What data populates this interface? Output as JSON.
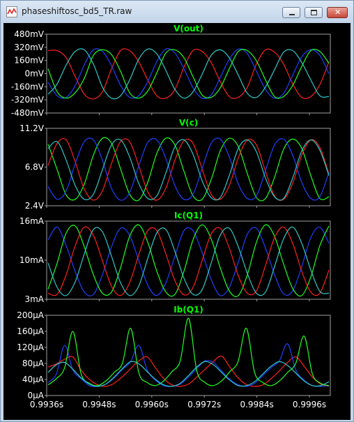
{
  "window": {
    "title": "phaseshiftosc_bd5_TR.raw"
  },
  "colors": {
    "background": "#000000",
    "frame": "#a0a0a0",
    "label": "#ffffff",
    "title": "#00ff00",
    "red": "#ff2020",
    "green": "#20ff20",
    "blue": "#2040ff",
    "cyan": "#30c8c8"
  },
  "chart_data": [
    {
      "type": "line",
      "title": "V(out)",
      "y_ticks": [
        "480mV",
        "320mV",
        "160mV",
        "0mV",
        "-160mV",
        "-320mV",
        "-480mV"
      ],
      "ylim": [
        -480,
        480
      ],
      "x_ticks": [],
      "series": [
        {
          "color": "red",
          "values": [
            290,
            290,
            200,
            -40,
            -260,
            -320,
            -230,
            60,
            290,
            290,
            150,
            -80,
            -280,
            -310,
            -200,
            80,
            290,
            280,
            140,
            -100,
            -290,
            -300,
            -170,
            120,
            300,
            270,
            120,
            -130,
            -300,
            -290,
            -140,
            150
          ]
        },
        {
          "color": "blue",
          "values": [
            -110,
            -280,
            -300,
            -150,
            110,
            300,
            280,
            100,
            -150,
            -300,
            -280,
            -100,
            150,
            310,
            260,
            60,
            -180,
            -310,
            -270,
            -50,
            180,
            310,
            250,
            30,
            -200,
            -310,
            -250,
            -20,
            210,
            300,
            230,
            0
          ]
        },
        {
          "color": "green",
          "values": [
            60,
            -230,
            -310,
            -240,
            -60,
            230,
            300,
            240,
            30,
            -240,
            -310,
            -220,
            10,
            260,
            300,
            200,
            -40,
            -270,
            -300,
            -180,
            60,
            280,
            290,
            160,
            -80,
            -290,
            -290,
            -150,
            90,
            290,
            280,
            130
          ]
        },
        {
          "color": "cyan",
          "values": [
            -260,
            -130,
            110,
            280,
            300,
            120,
            -170,
            -310,
            -280,
            -80,
            180,
            310,
            250,
            40,
            -200,
            -310,
            -230,
            -10,
            230,
            300,
            200,
            -20,
            -250,
            -300,
            -170,
            50,
            270,
            290,
            140,
            -80,
            -280,
            -290
          ]
        }
      ]
    },
    {
      "type": "line",
      "title": "V(c)",
      "y_ticks": [
        "11.2V",
        "6.8V",
        "2.4V"
      ],
      "ylim": [
        2.4,
        11.2
      ],
      "x_ticks": [],
      "series": [
        {
          "color": "green",
          "values": [
            9.5,
            6.5,
            3.5,
            3.0,
            4.8,
            8.2,
            10.2,
            9.6,
            6.6,
            3.6,
            2.9,
            5.0,
            8.4,
            10.2,
            9.4,
            6.3,
            3.4,
            3.0,
            5.3,
            8.7,
            10.2,
            9.2,
            6.0,
            3.2,
            3.1,
            5.6,
            8.9,
            10.1,
            9.0,
            5.8,
            3.1,
            3.3
          ]
        },
        {
          "color": "red",
          "values": [
            7.0,
            9.6,
            10.0,
            7.4,
            4.2,
            2.9,
            4.0,
            7.2,
            9.8,
            9.8,
            7.0,
            3.9,
            2.9,
            4.3,
            7.6,
            9.9,
            9.6,
            6.6,
            3.6,
            3.0,
            4.6,
            7.9,
            10.0,
            9.4,
            6.3,
            3.4,
            3.0,
            4.9,
            8.2,
            10.0,
            9.1,
            6.0
          ]
        },
        {
          "color": "blue",
          "values": [
            4.5,
            3.0,
            4.0,
            7.2,
            9.8,
            10.0,
            7.6,
            4.3,
            2.9,
            3.8,
            6.9,
            9.7,
            10.0,
            7.8,
            4.6,
            3.0,
            3.6,
            6.6,
            9.6,
            10.1,
            8.0,
            4.8,
            3.1,
            3.4,
            6.4,
            9.4,
            10.1,
            8.2,
            5.0,
            3.1,
            3.3,
            6.2
          ]
        },
        {
          "color": "cyan",
          "values": [
            9.0,
            9.8,
            7.6,
            4.6,
            3.0,
            3.6,
            6.5,
            9.4,
            10.0,
            8.0,
            4.9,
            3.1,
            3.4,
            6.1,
            9.2,
            10.0,
            8.3,
            5.2,
            3.2,
            3.2,
            5.8,
            9.0,
            10.0,
            8.6,
            5.5,
            3.3,
            3.1,
            5.5,
            8.7,
            10.0,
            8.8,
            5.8
          ]
        }
      ]
    },
    {
      "type": "line",
      "title": "Ic(Q1)",
      "y_ticks": [
        "16mA",
        "10mA",
        "3mA"
      ],
      "ylim": [
        3,
        16
      ],
      "x_ticks": [],
      "series": [
        {
          "color": "blue",
          "values": [
            13.0,
            15.2,
            12.0,
            7.5,
            4.0,
            3.6,
            7.0,
            11.8,
            15.0,
            13.8,
            9.5,
            5.2,
            3.4,
            5.6,
            10.2,
            14.6,
            14.6,
            10.8,
            6.2,
            3.4,
            4.8,
            9.2,
            14.0,
            15.0,
            11.6,
            7.0,
            3.7,
            4.2,
            8.4,
            13.4,
            15.2,
            12.4
          ]
        },
        {
          "color": "green",
          "values": [
            4.5,
            9.0,
            14.2,
            15.4,
            11.8,
            7.0,
            3.8,
            4.0,
            8.2,
            13.6,
            15.6,
            12.6,
            7.6,
            4.0,
            3.6,
            7.6,
            13.0,
            15.6,
            13.2,
            8.2,
            4.2,
            3.4,
            7.0,
            12.6,
            15.6,
            13.6,
            8.8,
            4.6,
            3.4,
            6.6,
            12.0,
            15.4
          ]
        },
        {
          "color": "red",
          "values": [
            3.8,
            3.6,
            7.0,
            12.0,
            15.2,
            13.8,
            9.4,
            5.0,
            3.4,
            5.6,
            10.4,
            14.6,
            14.6,
            10.6,
            6.0,
            3.5,
            4.8,
            9.4,
            14.0,
            15.0,
            11.6,
            6.8,
            3.8,
            4.2,
            8.6,
            13.4,
            15.2,
            12.4,
            7.6,
            4.0,
            3.8,
            7.8
          ]
        },
        {
          "color": "cyan",
          "values": [
            9.0,
            4.8,
            3.4,
            5.8,
            10.6,
            14.8,
            14.4,
            10.2,
            5.6,
            3.4,
            5.0,
            9.8,
            14.2,
            14.8,
            11.0,
            6.4,
            3.6,
            4.4,
            9.0,
            13.8,
            15.0,
            11.8,
            7.2,
            3.8,
            4.0,
            8.4,
            13.2,
            15.2,
            12.4,
            7.8,
            4.1,
            3.8
          ]
        }
      ]
    },
    {
      "type": "line",
      "title": "Ib(Q1)",
      "y_ticks": [
        "200µA",
        "160µA",
        "120µA",
        "80µA",
        "40µA",
        "0µA"
      ],
      "ylim": [
        0,
        200
      ],
      "x_ticks": [
        "0.9936s",
        "0.9948s",
        "0.9960s",
        "0.9972s",
        "0.9984s",
        "0.9996s"
      ],
      "xlim": [
        0.9936,
        0.9999
      ],
      "series": [
        {
          "color": "red",
          "values": [
            70,
            78,
            90,
            96,
            62,
            38,
            24,
            20,
            28,
            45,
            66,
            86,
            96,
            68,
            40,
            24,
            20,
            26,
            44,
            64,
            84,
            98,
            70,
            42,
            25,
            20,
            24,
            40,
            60,
            82,
            96,
            72,
            44,
            26,
            20
          ]
        },
        {
          "color": "blue",
          "values": [
            30,
            52,
            126,
            62,
            40,
            22,
            20,
            26,
            42,
            64,
            84,
            126,
            62,
            36,
            22,
            20,
            26,
            44,
            66,
            86,
            82,
            60,
            38,
            24,
            20,
            28,
            48,
            68,
            86,
            130,
            62,
            36,
            22,
            20,
            22
          ]
        },
        {
          "color": "green",
          "values": [
            24,
            40,
            68,
            162,
            52,
            28,
            22,
            34,
            56,
            80,
            170,
            54,
            30,
            22,
            34,
            58,
            86,
            196,
            60,
            30,
            22,
            34,
            58,
            84,
            170,
            56,
            30,
            22,
            34,
            56,
            80,
            150,
            52,
            28,
            22
          ]
        },
        {
          "color": "cyan",
          "values": [
            56,
            76,
            82,
            64,
            42,
            26,
            20,
            26,
            44,
            66,
            84,
            78,
            58,
            38,
            24,
            20,
            28,
            48,
            70,
            84,
            76,
            56,
            36,
            22,
            22,
            32,
            52,
            72,
            84,
            74,
            54,
            34,
            22,
            22,
            32
          ]
        }
      ]
    }
  ]
}
